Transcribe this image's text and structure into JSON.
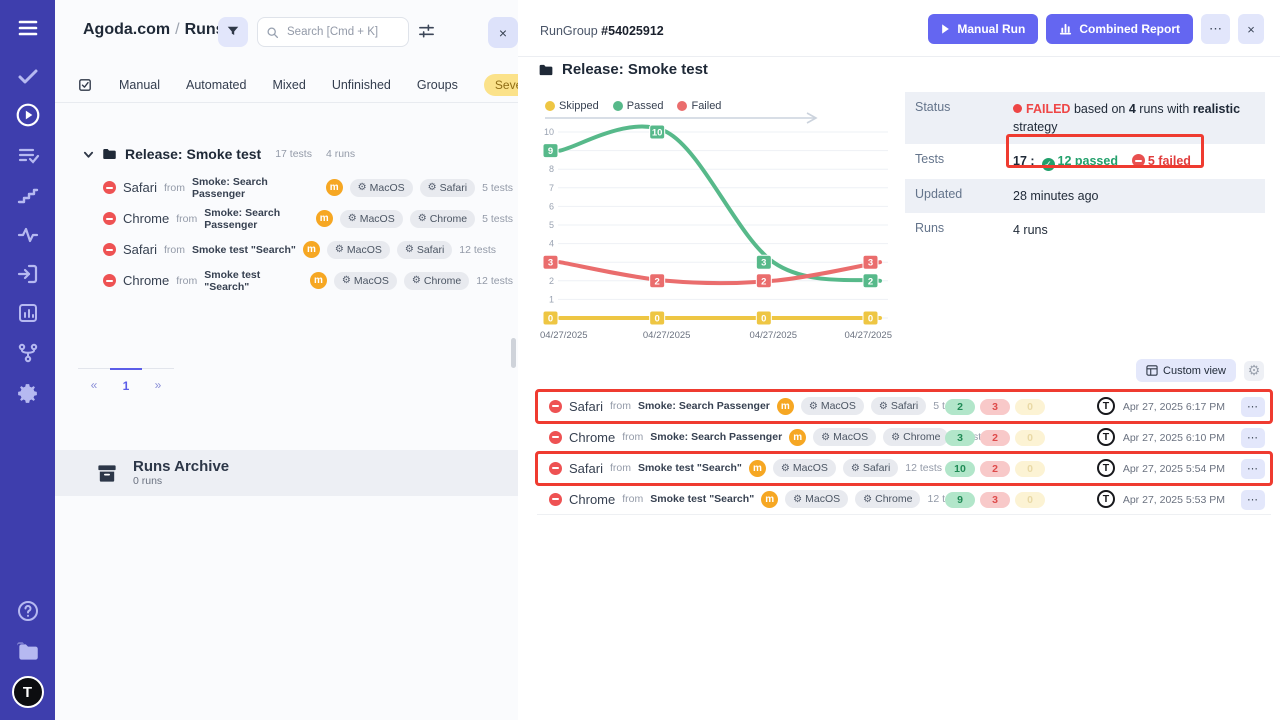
{
  "left_panel": {
    "breadcrumb": {
      "project": "Agoda.com",
      "separator": "/",
      "page": "Runs"
    },
    "search": {
      "placeholder": "Search [Cmd + K]"
    },
    "tabs": {
      "items": [
        "Manual",
        "Automated",
        "Mixed",
        "Unfinished",
        "Groups"
      ],
      "severity": "Severity"
    },
    "tree": {
      "group_label": "Release: Smoke test",
      "group_tests": "17 tests",
      "group_runs": "4 runs",
      "runs": [
        {
          "name": "Safari",
          "from_label": "from",
          "source": "Smoke: Search Passenger",
          "badge": "m",
          "env_os": "MacOS",
          "env_browser": "Safari",
          "tests": "5 tests"
        },
        {
          "name": "Chrome",
          "from_label": "from",
          "source": "Smoke: Search Passenger",
          "badge": "m",
          "env_os": "MacOS",
          "env_browser": "Chrome",
          "tests": "5 tests"
        },
        {
          "name": "Safari",
          "from_label": "from",
          "source": "Smoke test \"Search\"",
          "badge": "m",
          "env_os": "MacOS",
          "env_browser": "Safari",
          "tests": "12 tests"
        },
        {
          "name": "Chrome",
          "from_label": "from",
          "source": "Smoke test \"Search\"",
          "badge": "m",
          "env_os": "MacOS",
          "env_browser": "Chrome",
          "tests": "12 tests"
        }
      ]
    },
    "pagination": {
      "prev": "«",
      "current": "1",
      "next": "»"
    },
    "archive": {
      "title": "Runs Archive",
      "count": "0 runs"
    }
  },
  "main": {
    "header": {
      "group_label": "RunGroup",
      "group_id": "#54025912",
      "manual_run": "Manual Run",
      "combined_report": "Combined Report",
      "more": "⋯",
      "close": "×"
    },
    "title": "Release: Smoke test",
    "summary": {
      "status_label": "Status",
      "status_failed": "FAILED",
      "status_text_1": "based on",
      "status_runs_count": "4",
      "status_text_2": "runs with",
      "status_strategy": "realistic",
      "status_text_3": "strategy",
      "tests_label": "Tests",
      "tests_total": "17 :",
      "tests_passed": "12 passed",
      "tests_failed": "5 failed",
      "updated_label": "Updated",
      "updated_value": "28 minutes ago",
      "runs_label": "Runs",
      "runs_value": "4 runs"
    },
    "toolbar": {
      "custom_view": "Custom view"
    },
    "runs": [
      {
        "name": "Safari",
        "from_label": "from",
        "source": "Smoke: Search Passenger",
        "badge": "m",
        "env_os": "MacOS",
        "env_browser": "Safari",
        "tests": "5 tests",
        "counts": {
          "passed": "2",
          "failed": "3",
          "skipped": "0"
        },
        "date": "Apr 27, 2025 6:17 PM",
        "more": "⋯",
        "annotated": true
      },
      {
        "name": "Chrome",
        "from_label": "from",
        "source": "Smoke: Search Passenger",
        "badge": "m",
        "env_os": "MacOS",
        "env_browser": "Chrome",
        "tests": "5 tests",
        "counts": {
          "passed": "3",
          "failed": "2",
          "skipped": "0"
        },
        "date": "Apr 27, 2025 6:10 PM",
        "more": "⋯",
        "annotated": false
      },
      {
        "name": "Safari",
        "from_label": "from",
        "source": "Smoke test \"Search\"",
        "badge": "m",
        "env_os": "MacOS",
        "env_browser": "Safari",
        "tests": "12 tests",
        "counts": {
          "passed": "10",
          "failed": "2",
          "skipped": "0"
        },
        "date": "Apr 27, 2025 5:54 PM",
        "more": "⋯",
        "annotated": true
      },
      {
        "name": "Chrome",
        "from_label": "from",
        "source": "Smoke test \"Search\"",
        "badge": "m",
        "env_os": "MacOS",
        "env_browser": "Chrome",
        "tests": "12 tests",
        "counts": {
          "passed": "9",
          "failed": "3",
          "skipped": "0"
        },
        "date": "Apr 27, 2025 5:53 PM",
        "more": "⋯",
        "annotated": false
      }
    ]
  },
  "chart_data": {
    "type": "line",
    "x": [
      "04/27/2025",
      "04/27/2025",
      "04/27/2025",
      "04/27/2025"
    ],
    "series": [
      {
        "name": "Skipped",
        "color": "#eec643",
        "values": [
          0,
          0,
          0,
          0
        ]
      },
      {
        "name": "Passed",
        "color": "#57b98a",
        "values": [
          9,
          10,
          3,
          2
        ]
      },
      {
        "name": "Failed",
        "color": "#ea6d6d",
        "values": [
          3,
          2,
          2,
          3
        ]
      }
    ],
    "ylim": [
      0,
      10
    ],
    "yticks": [
      0,
      1,
      2,
      3,
      4,
      5,
      6,
      7,
      8,
      9,
      10
    ],
    "grid": true,
    "legend_position": "top"
  }
}
